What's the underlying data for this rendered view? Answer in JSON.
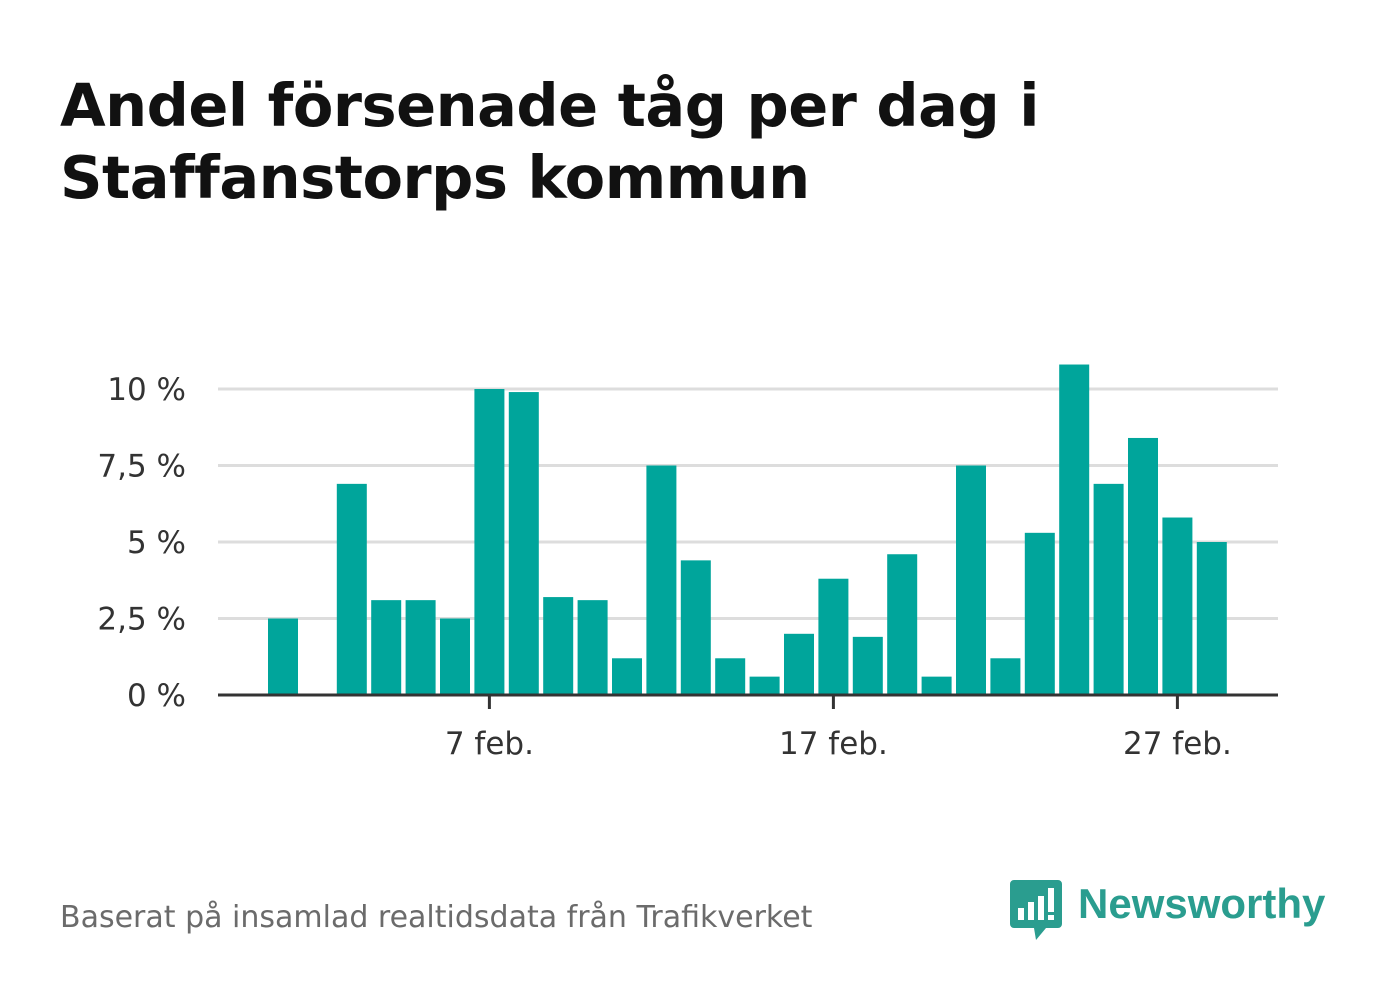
{
  "title_line1": "Andel försenade tåg per dag i",
  "title_line2": "Staffanstorps kommun",
  "source": "Baserat på insamlad realtidsdata från Trafikverket",
  "brand": {
    "name": "Newsworthy",
    "icon": "bar-chart-speech-bubble-icon",
    "color": "#2a9d8f"
  },
  "chart_data": {
    "type": "bar",
    "bar_color": "#00a59b",
    "x_dates": [
      "1 feb.",
      "2 feb.",
      "3 feb.",
      "4 feb.",
      "5 feb.",
      "6 feb.",
      "7 feb.",
      "8 feb.",
      "9 feb.",
      "10 feb.",
      "11 feb.",
      "12 feb.",
      "13 feb.",
      "14 feb.",
      "15 feb.",
      "16 feb.",
      "17 feb.",
      "18 feb.",
      "19 feb.",
      "20 feb.",
      "21 feb.",
      "22 feb.",
      "23 feb.",
      "24 feb.",
      "25 feb.",
      "26 feb.",
      "27 feb.",
      "28 feb."
    ],
    "values": [
      2.5,
      0,
      6.9,
      3.1,
      3.1,
      2.5,
      10.0,
      9.9,
      3.2,
      3.1,
      1.2,
      7.5,
      4.4,
      1.2,
      0.6,
      2.0,
      3.8,
      1.9,
      4.6,
      0.6,
      7.5,
      1.2,
      5.3,
      10.8,
      6.9,
      8.4,
      5.8,
      5.0
    ],
    "ylim": [
      0,
      10.8
    ],
    "y_ticks": [
      0,
      2.5,
      5,
      7.5,
      10
    ],
    "y_tick_labels": [
      "0 %",
      "2,5 %",
      "5 %",
      "7,5 %",
      "10 %"
    ],
    "x_ticks": [
      "7 feb.",
      "17 feb.",
      "27 feb."
    ],
    "x_tick_positions": [
      "7 feb.",
      "17 feb.",
      "27 feb."
    ],
    "grid": true
  }
}
